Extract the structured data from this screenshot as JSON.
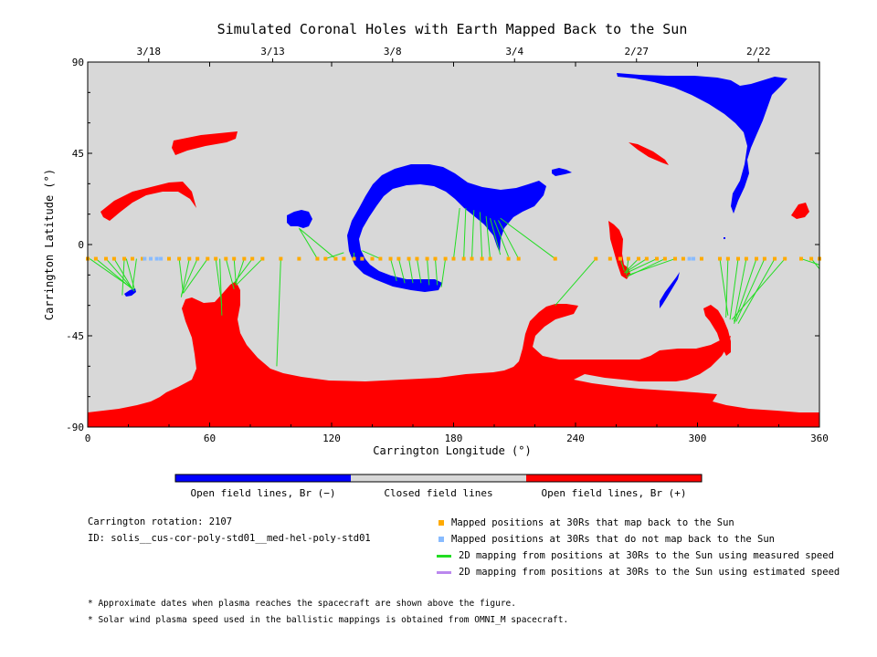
{
  "chart_data": {
    "type": "map",
    "title": "Simulated Coronal Holes with Earth Mapped Back to the Sun",
    "xlabel": "Carrington Longitude (°)",
    "ylabel": "Carrington Latitude (°)",
    "xlim": [
      0,
      360
    ],
    "ylim": [
      -90,
      90
    ],
    "x_ticks": [
      "0",
      "60",
      "120",
      "180",
      "240",
      "300",
      "360"
    ],
    "y_ticks": [
      "90",
      "45",
      "0",
      "-45",
      "-90"
    ],
    "x_tick_values": [
      0,
      60,
      120,
      180,
      240,
      300,
      360
    ],
    "y_tick_values": [
      90,
      45,
      0,
      -45,
      -90
    ],
    "top_axis_dates": [
      {
        "label": "3/18",
        "lon": 30
      },
      {
        "label": "3/13",
        "lon": 91
      },
      {
        "label": "3/8",
        "lon": 150
      },
      {
        "label": "3/4",
        "lon": 210
      },
      {
        "label": "2/27",
        "lon": 270
      },
      {
        "label": "2/22",
        "lon": 330
      }
    ],
    "colors": {
      "closed": "#d8d8d8",
      "open_negative": "#0000ff",
      "open_positive": "#ff0000",
      "mapped_back": "#ffaa00",
      "not_mapped": "#88bbff",
      "measured_speed": "#22dd22",
      "estimated_speed": "#bb88ee"
    },
    "spacecraft_latitude": -7,
    "mapped_longitudes": [
      0,
      4,
      9,
      13,
      18,
      22,
      27,
      40,
      45,
      50,
      54,
      59,
      63,
      68,
      72,
      77,
      81,
      86,
      95,
      104,
      113,
      117,
      122,
      126,
      131,
      135,
      140,
      144,
      149,
      153,
      158,
      162,
      167,
      171,
      176,
      180,
      185,
      189,
      194,
      198,
      207,
      212,
      230,
      250,
      257,
      262,
      266,
      271,
      275,
      280,
      284,
      289,
      293,
      302,
      311,
      315,
      320,
      324,
      329,
      333,
      338,
      343,
      351,
      356,
      360
    ],
    "unmapped_longitudes": [
      28,
      31,
      34,
      36,
      296,
      298
    ],
    "mappings": [
      {
        "from": [
          24,
          -7
        ],
        "to": [
          22,
          -22
        ]
      },
      {
        "from": [
          19,
          -7
        ],
        "to": [
          23,
          -22
        ]
      },
      {
        "from": [
          13,
          -7
        ],
        "to": [
          22,
          -22
        ]
      },
      {
        "from": [
          9,
          -7
        ],
        "to": [
          23,
          -23
        ]
      },
      {
        "from": [
          4,
          -7
        ],
        "to": [
          22,
          -22
        ]
      },
      {
        "from": [
          1,
          -7
        ],
        "to": [
          21,
          -21
        ]
      },
      {
        "from": [
          18,
          -7
        ],
        "to": [
          17,
          -25
        ]
      },
      {
        "from": [
          45,
          -7
        ],
        "to": [
          47,
          -24
        ]
      },
      {
        "from": [
          50,
          -7
        ],
        "to": [
          46,
          -26
        ]
      },
      {
        "from": [
          54,
          -7
        ],
        "to": [
          46,
          -25
        ]
      },
      {
        "from": [
          59,
          -7
        ],
        "to": [
          47,
          -24
        ]
      },
      {
        "from": [
          63,
          -7
        ],
        "to": [
          66,
          -30
        ]
      },
      {
        "from": [
          68,
          -7
        ],
        "to": [
          72,
          -22
        ]
      },
      {
        "from": [
          72,
          -7
        ],
        "to": [
          73,
          -20
        ]
      },
      {
        "from": [
          77,
          -7
        ],
        "to": [
          73,
          -19
        ]
      },
      {
        "from": [
          81,
          -7
        ],
        "to": [
          72,
          -19
        ]
      },
      {
        "from": [
          86,
          -7
        ],
        "to": [
          73,
          -20
        ]
      },
      {
        "from": [
          65,
          -7
        ],
        "to": [
          66,
          -35
        ]
      },
      {
        "from": [
          95,
          -7
        ],
        "to": [
          93,
          -60
        ]
      },
      {
        "from": [
          104,
          8
        ],
        "to": [
          113,
          -7
        ]
      },
      {
        "from": [
          104,
          8
        ],
        "to": [
          122,
          -7
        ]
      },
      {
        "from": [
          126,
          -4
        ],
        "to": [
          117,
          -7
        ]
      },
      {
        "from": [
          131,
          -4
        ],
        "to": [
          131,
          -7
        ]
      },
      {
        "from": [
          135,
          -3
        ],
        "to": [
          144,
          -7
        ]
      },
      {
        "from": [
          149,
          -7
        ],
        "to": [
          152,
          -18
        ]
      },
      {
        "from": [
          153,
          -7
        ],
        "to": [
          156,
          -19
        ]
      },
      {
        "from": [
          158,
          -7
        ],
        "to": [
          160,
          -19
        ]
      },
      {
        "from": [
          162,
          -7
        ],
        "to": [
          164,
          -19
        ]
      },
      {
        "from": [
          167,
          -7
        ],
        "to": [
          168,
          -20
        ]
      },
      {
        "from": [
          171,
          -7
        ],
        "to": [
          172,
          -20
        ]
      },
      {
        "from": [
          176,
          -7
        ],
        "to": [
          174,
          -21
        ]
      },
      {
        "from": [
          180,
          -7
        ],
        "to": [
          183,
          18
        ]
      },
      {
        "from": [
          185,
          -7
        ],
        "to": [
          186,
          18
        ]
      },
      {
        "from": [
          189,
          -7
        ],
        "to": [
          190,
          17
        ]
      },
      {
        "from": [
          194,
          -7
        ],
        "to": [
          193,
          16
        ]
      },
      {
        "from": [
          198,
          -7
        ],
        "to": [
          196,
          14
        ]
      },
      {
        "from": [
          203,
          -5
        ],
        "to": [
          198,
          13
        ]
      },
      {
        "from": [
          207,
          -6
        ],
        "to": [
          200,
          12
        ]
      },
      {
        "from": [
          212,
          -7
        ],
        "to": [
          202,
          12
        ]
      },
      {
        "from": [
          230,
          -7
        ],
        "to": [
          203,
          13
        ]
      },
      {
        "from": [
          230,
          -30
        ],
        "to": [
          250,
          -7
        ]
      },
      {
        "from": [
          262,
          -7
        ],
        "to": [
          264,
          -13
        ]
      },
      {
        "from": [
          266,
          -7
        ],
        "to": [
          265,
          -15
        ]
      },
      {
        "from": [
          271,
          -7
        ],
        "to": [
          264,
          -14
        ]
      },
      {
        "from": [
          275,
          -7
        ],
        "to": [
          264,
          -14
        ]
      },
      {
        "from": [
          280,
          -7
        ],
        "to": [
          265,
          -14
        ]
      },
      {
        "from": [
          284,
          -7
        ],
        "to": [
          265,
          -16
        ]
      },
      {
        "from": [
          289,
          -7
        ],
        "to": [
          266,
          -15
        ]
      },
      {
        "from": [
          311,
          -7
        ],
        "to": [
          315,
          -35
        ]
      },
      {
        "from": [
          315,
          -7
        ],
        "to": [
          314,
          -36
        ]
      },
      {
        "from": [
          320,
          -7
        ],
        "to": [
          316,
          -37
        ]
      },
      {
        "from": [
          324,
          -7
        ],
        "to": [
          318,
          -38
        ]
      },
      {
        "from": [
          329,
          -7
        ],
        "to": [
          318,
          -39
        ]
      },
      {
        "from": [
          333,
          -7
        ],
        "to": [
          319,
          -38
        ]
      },
      {
        "from": [
          338,
          -7
        ],
        "to": [
          320,
          -39
        ]
      },
      {
        "from": [
          343,
          -7
        ],
        "to": [
          317,
          -37
        ]
      },
      {
        "from": [
          351,
          -7
        ],
        "to": [
          360,
          -10
        ]
      },
      {
        "from": [
          356,
          -7
        ],
        "to": [
          360,
          -12
        ]
      }
    ],
    "colorbar": [
      "Open field lines, Br (−)",
      "Closed field lines",
      "Open field lines, Br (+)"
    ]
  },
  "info": {
    "rotation": "Carrington rotation: 2107",
    "id": "ID: solis__cus-cor-poly-std01__med-hel-poly-std01"
  },
  "legend": [
    {
      "label": "Mapped positions at 30Rs that map back to the Sun",
      "kind": "square",
      "color": "#ffaa00"
    },
    {
      "label": "Mapped positions at 30Rs that do not map back to the Sun",
      "kind": "square",
      "color": "#88bbff"
    },
    {
      "label": "2D mapping from positions at 30Rs to the Sun using measured speed",
      "kind": "line",
      "color": "#22dd22"
    },
    {
      "label": "2D mapping from positions at 30Rs to the Sun using estimated speed",
      "kind": "line",
      "color": "#bb88ee"
    }
  ],
  "notes": [
    "* Approximate dates when plasma reaches the spacecraft are shown above the figure.",
    "* Solar wind plasma speed used in the ballistic mappings is obtained from OMNI_M spacecraft."
  ]
}
